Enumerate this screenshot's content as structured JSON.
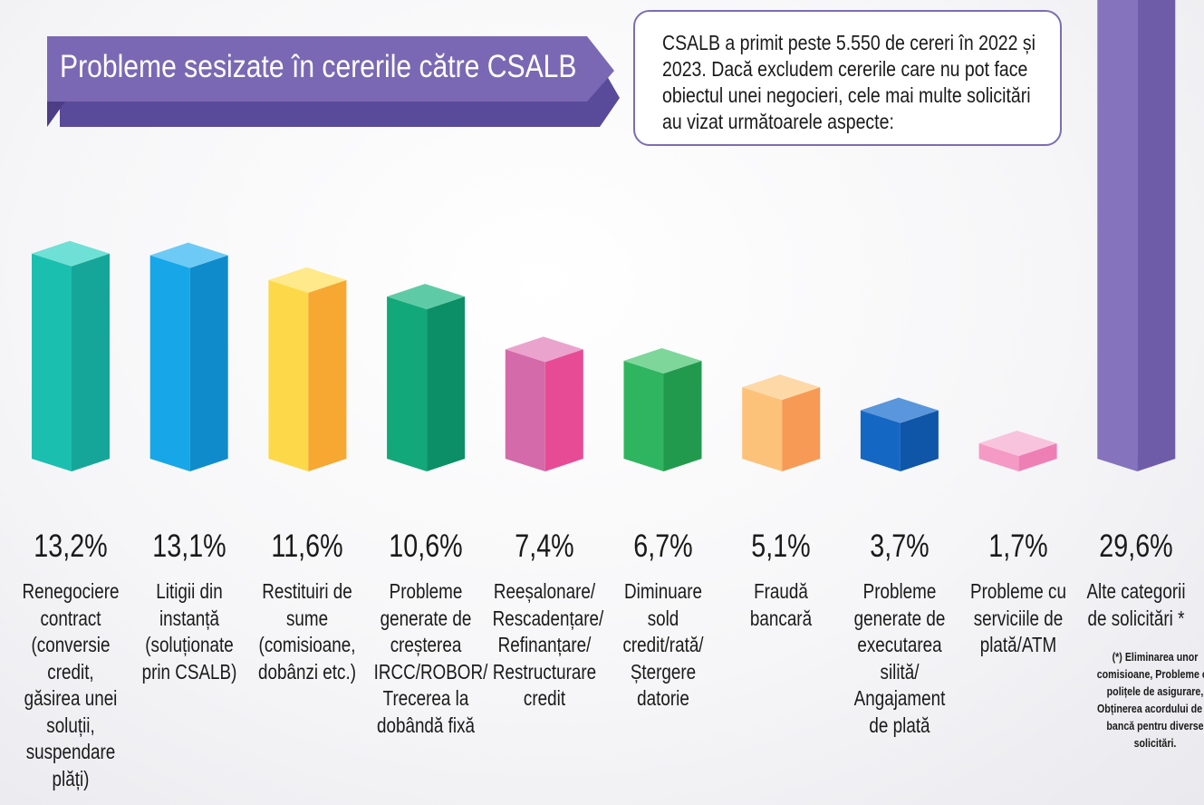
{
  "intro_text": "CSALB a primit peste 5.550 de cereri în 2022 și 2023. Dacă excludem cererile care nu pot face obiectul unei negocieri, cele mai multe solicitări au vizat următoarele aspecte:",
  "footnote": "(*) Eliminarea unor comisioane, Probleme cu polițele de asigurare, Obținerea acordului de la bancă pentru diverse solicitări.",
  "chart_data": {
    "type": "bar",
    "title": "Probleme sesizate în cererile către CSALB",
    "ylim": [
      0,
      30
    ],
    "categories": [
      {
        "name": "Renegociere contract (conversie credit, găsirea unei soluții, suspendare plăți)",
        "label": "Renegociere\ncontract\n(conversie\ncredit,\ngăsirea unei\nsoluții,\nsuspendare\nplăți)",
        "value": 13.2,
        "value_label": "13,2%",
        "front": "#1bbfb0",
        "side": "#15a699",
        "top": "#6fe0d5"
      },
      {
        "name": "Litigii din instanță (soluționate prin CSALB)",
        "label": "Litigii din\ninstanță\n(soluționate\nprin CSALB)",
        "value": 13.1,
        "value_label": "13,1%",
        "front": "#17a7e8",
        "side": "#0f8bcc",
        "top": "#6dcaf5"
      },
      {
        "name": "Restituiri de sume (comisioane, dobânzi etc.)",
        "label": "Restituiri de\nsume\n(comisioane,\ndobânzi etc.)",
        "value": 11.6,
        "value_label": "11,6%",
        "front": "#fdd94a",
        "side": "#f6a832",
        "top": "#ffe98a"
      },
      {
        "name": "Probleme generate de creșterea IRCC/ROBOR/ Trecerea la dobândă fixă",
        "label": "Probleme\ngenerate de\ncreșterea\nIRCC/ROBOR/\nTrecerea la\ndobândă fixă",
        "value": 10.6,
        "value_label": "10,6%",
        "front": "#12a87a",
        "side": "#0c8f66",
        "top": "#5fcba6"
      },
      {
        "name": "Reeșalonare/ Rescadențare/ Refinanțare/ Restructurare credit",
        "label": "Reeșalonare/\nRescadențare/\nRefinanțare/\nRestructurare\ncredit",
        "value": 7.4,
        "value_label": "7,4%",
        "front": "#d46aa9",
        "side": "#e84b96",
        "top": "#eaa3cd"
      },
      {
        "name": "Diminuare sold credit/rată/ Ștergere datorie",
        "label": "Diminuare\nsold\ncredit/rată/\nȘtergere\ndatorie",
        "value": 6.7,
        "value_label": "6,7%",
        "front": "#2fb560",
        "side": "#229a4e",
        "top": "#7ed69a"
      },
      {
        "name": "Fraudă bancară",
        "label": "Fraudă\nbancară",
        "value": 5.1,
        "value_label": "5,1%",
        "front": "#fcc27a",
        "side": "#f79a55",
        "top": "#fdd9a8"
      },
      {
        "name": "Probleme generate de executarea silită/ Angajament de plată",
        "label": "Probleme\ngenerate de\nexecutarea\nsilită/\nAngajament\nde plată",
        "value": 3.7,
        "value_label": "3,7%",
        "front": "#1567c4",
        "side": "#0f55a8",
        "top": "#5a96db"
      },
      {
        "name": "Probleme cu serviciile de plată/ATM",
        "label": "Probleme cu\nserviciile de\nplată/ATM",
        "value": 1.7,
        "value_label": "1,7%",
        "front": "#f49ac5",
        "side": "#ee7fb5",
        "top": "#f8c3dd"
      },
      {
        "name": "Alte categorii de solicitări *",
        "label": "Alte categorii\nde solicitări *",
        "value": 29.6,
        "value_label": "29,6%",
        "front": "#8573bd",
        "side": "#6f5ca9",
        "top": "#a99ad6"
      }
    ]
  }
}
